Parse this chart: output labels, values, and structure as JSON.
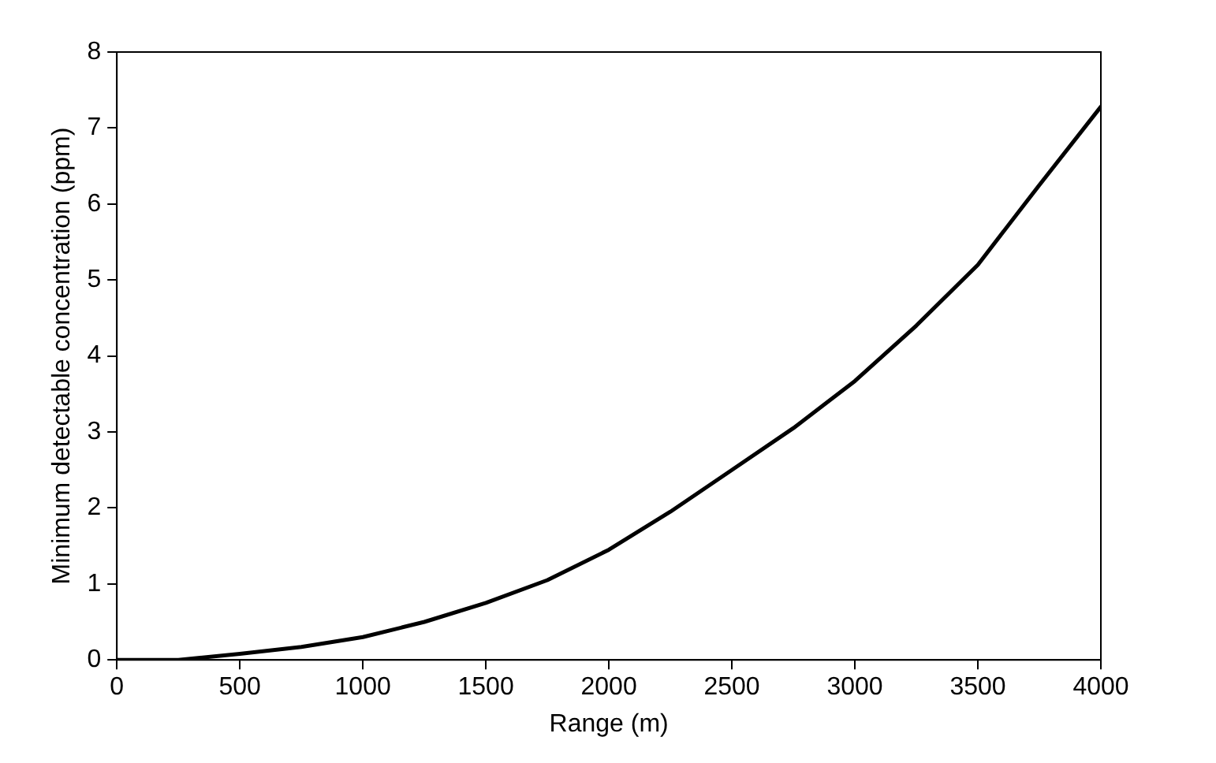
{
  "chart_data": {
    "type": "line",
    "xlabel": "Range (m)",
    "ylabel": "Minimum detectable concentration (ppm)",
    "x": [
      0,
      250,
      500,
      750,
      1000,
      1250,
      1500,
      1750,
      2000,
      2250,
      2500,
      2750,
      3000,
      3250,
      3500,
      3750,
      4000
    ],
    "series": [
      {
        "color": "#000000",
        "values": [
          0,
          0,
          0.08,
          0.17,
          0.3,
          0.5,
          0.75,
          1.05,
          1.45,
          1.95,
          2.5,
          3.05,
          3.67,
          4.4,
          5.2,
          6.25,
          7.28
        ]
      }
    ],
    "xlim": [
      0,
      4000
    ],
    "xticks": [
      0,
      500,
      1000,
      1500,
      2000,
      2500,
      3000,
      3500,
      4000
    ],
    "ylim": [
      0,
      8
    ],
    "yticks": [
      0,
      1,
      2,
      3,
      4,
      5,
      6,
      7,
      8
    ],
    "grid": false,
    "legend": false,
    "marker": "none",
    "line_style": "solid"
  }
}
